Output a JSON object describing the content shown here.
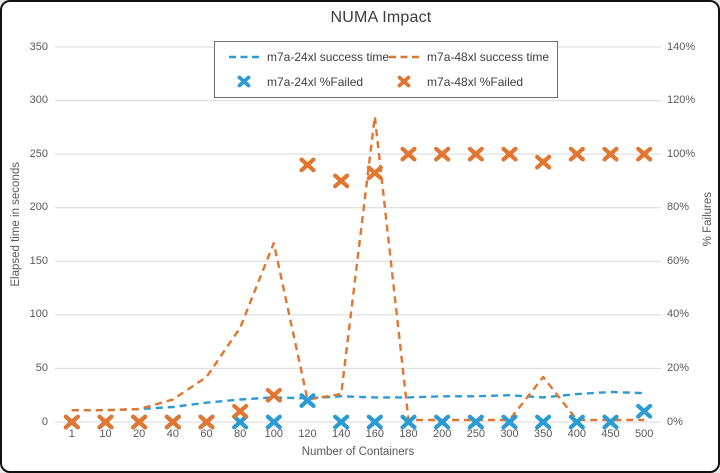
{
  "title": "NUMA Impact",
  "colors": {
    "blue": "#2B9BD3",
    "orange": "#E0762F",
    "grid": "#D9D9D9",
    "tick_text": "#595959",
    "title_text": "#3B3B3B",
    "legend_border": "#6E6E6E"
  },
  "chart_data": {
    "type": "line",
    "title": "NUMA Impact",
    "categories": [
      "1",
      "10",
      "20",
      "40",
      "60",
      "80",
      "100",
      "120",
      "140",
      "160",
      "180",
      "200",
      "250",
      "300",
      "350",
      "400",
      "450",
      "500"
    ],
    "xlabel": "Number of Containers",
    "y_axis_left": {
      "label": "Elapsed time in seconds",
      "min": 0,
      "max": 350,
      "step": 50,
      "ticks": [
        "0",
        "50",
        "100",
        "150",
        "200",
        "250",
        "300",
        "350"
      ]
    },
    "y_axis_right": {
      "label": "% Failures",
      "min": 0,
      "max": 140,
      "step": 20,
      "ticks": [
        "0%",
        "20%",
        "40%",
        "60%",
        "80%",
        "100%",
        "120%",
        "140%"
      ]
    },
    "grid": "horizontal",
    "legend_position": "top-inside",
    "series": [
      {
        "name": "m7a-24xl success time",
        "type": "dashed-line",
        "axis": "left",
        "color": "blue",
        "values": [
          11,
          11,
          12,
          14,
          18,
          21,
          23,
          22,
          24,
          23,
          23,
          24,
          24,
          25,
          23,
          26,
          28,
          27
        ]
      },
      {
        "name": "m7a-48xl success time",
        "type": "dashed-line",
        "axis": "left",
        "color": "orange",
        "values": [
          11,
          11,
          12,
          21,
          42,
          88,
          167,
          21,
          26,
          285,
          2,
          2,
          2,
          2,
          42,
          2,
          2,
          2
        ]
      },
      {
        "name": "m7a-24xl %Failed",
        "type": "x-marker",
        "axis": "right",
        "color": "blue",
        "values": [
          0,
          0,
          0,
          0,
          0,
          0,
          0,
          8,
          0,
          0,
          0,
          0,
          0,
          0,
          0,
          0,
          0,
          4
        ]
      },
      {
        "name": "m7a-48xl %Failed",
        "type": "x-marker",
        "axis": "right",
        "color": "orange",
        "values": [
          0,
          0,
          0,
          0,
          0,
          4,
          10,
          96,
          90,
          93,
          100,
          100,
          100,
          100,
          97,
          100,
          100,
          100
        ]
      }
    ]
  }
}
